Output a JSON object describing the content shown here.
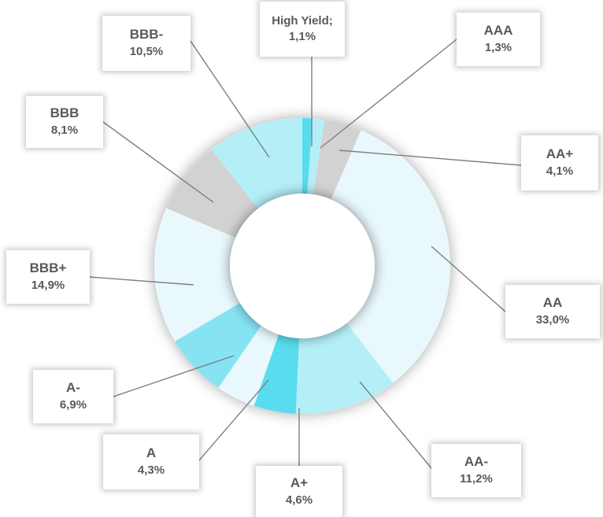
{
  "chart_data": {
    "type": "pie",
    "subtype": "doughnut",
    "title": "",
    "labels_style": "callouts with leader lines",
    "legend": "none",
    "slices": [
      {
        "label": "High Yield;",
        "value_label": "1,1%",
        "value": 1.1,
        "color": "#59DCEE"
      },
      {
        "label": "AAA",
        "value_label": "1,3%",
        "value": 1.3,
        "color": "#B4EFF7"
      },
      {
        "label": "AA+",
        "value_label": "4,1%",
        "value": 4.1,
        "color": "#D2D2D2"
      },
      {
        "label": "AA",
        "value_label": "33,0%",
        "value": 33.0,
        "color": "#E8F8FC"
      },
      {
        "label": "AA-",
        "value_label": "11,2%",
        "value": 11.2,
        "color": "#B4EFF7"
      },
      {
        "label": "A+",
        "value_label": "4,6%",
        "value": 4.6,
        "color": "#59DCEE"
      },
      {
        "label": "A",
        "value_label": "4,3%",
        "value": 4.3,
        "color": "#E8F8FC"
      },
      {
        "label": "A-",
        "value_label": "6,9%",
        "value": 6.9,
        "color": "#86E4F2"
      },
      {
        "label": "BBB+",
        "value_label": "14,9%",
        "value": 14.9,
        "color": "#E8F8FC"
      },
      {
        "label": "BBB",
        "value_label": "8,1%",
        "value": 8.1,
        "color": "#D2D2D2"
      },
      {
        "label": "BBB-",
        "value_label": "10,5%",
        "value": 10.5,
        "color": "#B4EFF7"
      }
    ]
  }
}
